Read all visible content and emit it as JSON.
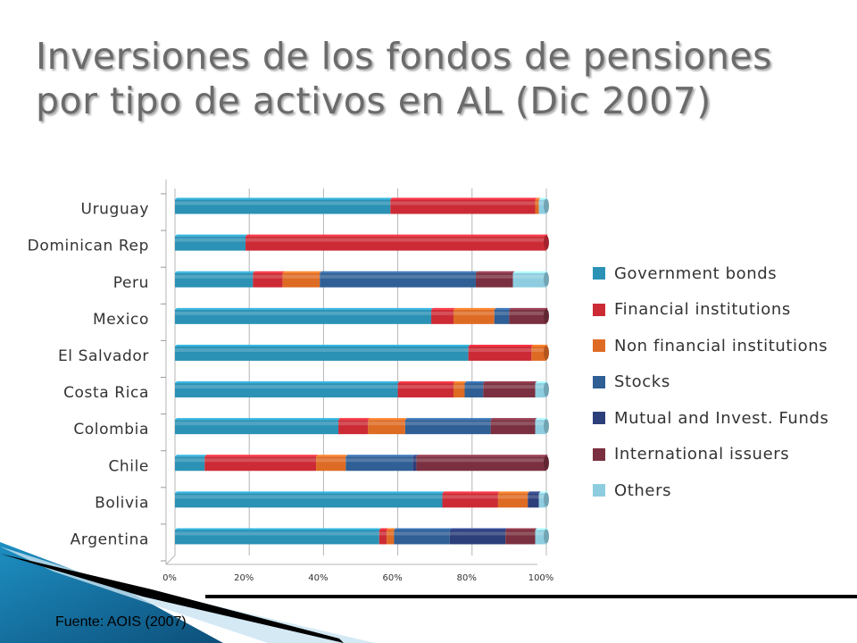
{
  "title": {
    "line1": "Inversiones de los fondos de pensiones",
    "line2": "por tipo de activos en AL (Dic 2007)"
  },
  "source": "Fuente: AOIS (2007)",
  "chart_data": {
    "type": "bar",
    "orientation": "horizontal",
    "stacked": "percent",
    "categories": [
      "Argentina",
      "Bolivia",
      "Chile",
      "Colombia",
      "Costa Rica",
      "El Salvador",
      "Mexico",
      "Peru",
      "Dominican Rep",
      "Uruguay"
    ],
    "series": [
      {
        "name": "Government bonds",
        "color": "#2b92b5",
        "values": [
          55,
          72,
          8,
          44,
          60,
          79,
          69,
          21,
          19,
          58
        ]
      },
      {
        "name": "Financial institutions",
        "color": "#cc2b36",
        "values": [
          2,
          15,
          30,
          8,
          15,
          17,
          6,
          8,
          81,
          39
        ]
      },
      {
        "name": "Non financial institutions",
        "color": "#de6b24",
        "values": [
          2,
          8,
          8,
          10,
          3,
          4,
          11,
          10,
          0,
          1
        ]
      },
      {
        "name": "Stocks",
        "color": "#2f5f95",
        "values": [
          15,
          0,
          18,
          23,
          5,
          0,
          4,
          42,
          0,
          0
        ]
      },
      {
        "name": "Mutual and Invest. Funds",
        "color": "#2d3f7a",
        "values": [
          15,
          3,
          1,
          0,
          0,
          0,
          0,
          0,
          0,
          0
        ]
      },
      {
        "name": "International issuers",
        "color": "#7a3040",
        "values": [
          8,
          0,
          35,
          12,
          14,
          0,
          10,
          10,
          0,
          0
        ]
      },
      {
        "name": "Others",
        "color": "#8ecde0",
        "values": [
          3,
          2,
          0,
          3,
          3,
          0,
          0,
          9,
          0,
          2
        ]
      }
    ],
    "xticks": [
      "0%",
      "20%",
      "40%",
      "60%",
      "80%",
      "100%"
    ],
    "xlim": [
      0,
      100
    ],
    "grid": true,
    "legend": "right"
  }
}
